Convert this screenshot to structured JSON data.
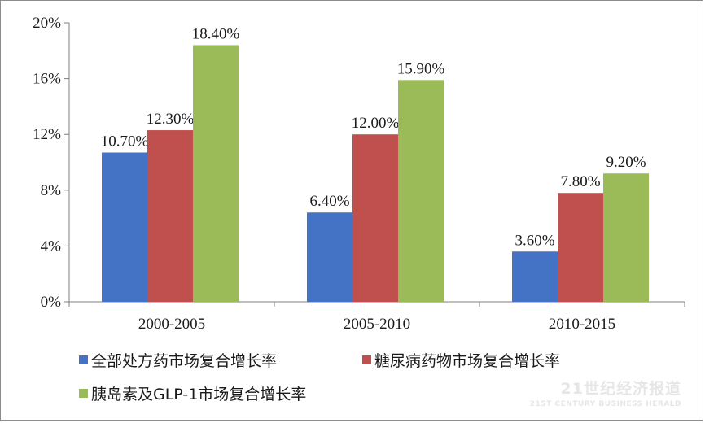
{
  "chart_data": {
    "type": "bar",
    "categories": [
      "2000-2005",
      "2005-2010",
      "2010-2015"
    ],
    "series": [
      {
        "name": "全部处方药市场复合增长率",
        "values": [
          10.7,
          6.4,
          3.6
        ],
        "labels": [
          "10.70%",
          "6.40%",
          "3.60%"
        ],
        "color": "#4472c4"
      },
      {
        "name": "糖尿病药物市场复合增长率",
        "values": [
          12.3,
          12.0,
          7.8
        ],
        "labels": [
          "12.30%",
          "12.00%",
          "7.80%"
        ],
        "color": "#c0504d"
      },
      {
        "name": "胰岛素及GLP-1市场复合增长率",
        "values": [
          18.4,
          15.9,
          9.2
        ],
        "labels": [
          "18.40%",
          "15.90%",
          "9.20%"
        ],
        "color": "#9bbb59"
      }
    ],
    "yticks": [
      "0%",
      "4%",
      "8%",
      "12%",
      "16%",
      "20%"
    ],
    "ylim": [
      0,
      20
    ],
    "grid": false,
    "legend_position": "bottom"
  },
  "watermark": {
    "main": "21世纪经济报道",
    "sub": "21ST CENTURY BUSINESS HERALD"
  }
}
